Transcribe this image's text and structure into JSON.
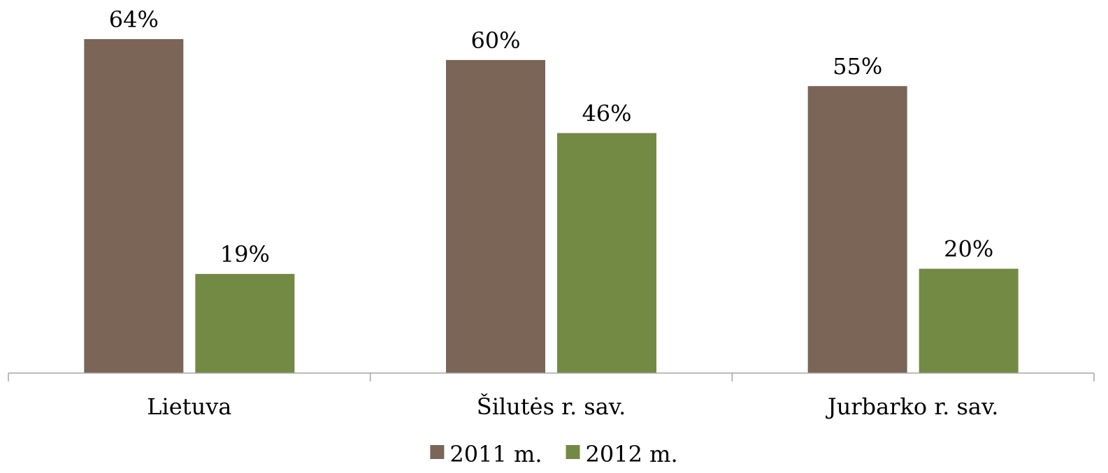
{
  "chart_data": {
    "type": "bar",
    "categories": [
      "Lietuva",
      "Šilutės r. sav.",
      "Jurbarko r. sav."
    ],
    "series": [
      {
        "name": "2011 m.",
        "values": [
          64,
          60,
          55
        ],
        "labels": [
          "64%",
          "60%",
          "55%"
        ],
        "color": "#7a6557"
      },
      {
        "name": "2012 m.",
        "values": [
          19,
          46,
          20
        ],
        "labels": [
          "19%",
          "46%",
          "20%"
        ],
        "color": "#738a45"
      }
    ],
    "title": "",
    "xlabel": "",
    "ylabel": "",
    "ylim": [
      0,
      64
    ],
    "grid": false,
    "legend": "bottom-center",
    "axis_color": "#a6a6a6"
  }
}
